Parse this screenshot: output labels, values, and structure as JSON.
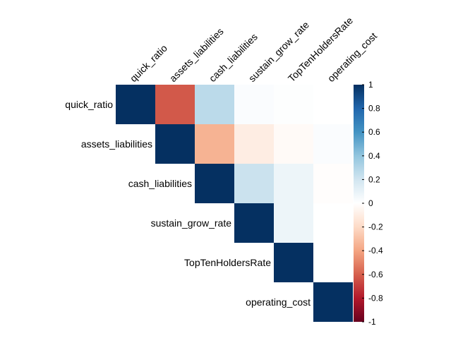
{
  "chart_data": {
    "type": "heatmap",
    "subtype": "correlation-matrix-upper",
    "variables": [
      "quick_ratio",
      "assets_liabilities",
      "cash_liabilities",
      "sustain_grow_rate",
      "TopTenHoldersRate",
      "operating_cost"
    ],
    "matrix": [
      [
        1.0,
        -0.62,
        0.27,
        0.02,
        0.01,
        0.0
      ],
      [
        null,
        1.0,
        -0.35,
        -0.1,
        -0.03,
        0.02
      ],
      [
        null,
        null,
        1.0,
        0.22,
        0.08,
        -0.01
      ],
      [
        null,
        null,
        null,
        1.0,
        0.08,
        0.0
      ],
      [
        null,
        null,
        null,
        null,
        1.0,
        0.0
      ],
      [
        null,
        null,
        null,
        null,
        null,
        1.0
      ]
    ],
    "colorbar": {
      "range": [
        -1,
        1
      ],
      "ticks": [
        "1",
        "0.8",
        "0.6",
        "0.4",
        "0.2",
        "0",
        "-0.2",
        "-0.4",
        "-0.6",
        "-0.8",
        "-1"
      ],
      "tick_values": [
        1,
        0.8,
        0.6,
        0.4,
        0.2,
        0,
        -0.2,
        -0.4,
        -0.6,
        -0.8,
        -1
      ],
      "colors": [
        "#67001F",
        "#B2182B",
        "#D6604D",
        "#F4A582",
        "#FDDBC7",
        "#FFFFFF",
        "#D1E5F0",
        "#92C5DE",
        "#4393C3",
        "#2166AC",
        "#053061"
      ]
    },
    "title": "",
    "xlabel": "",
    "ylabel": ""
  }
}
